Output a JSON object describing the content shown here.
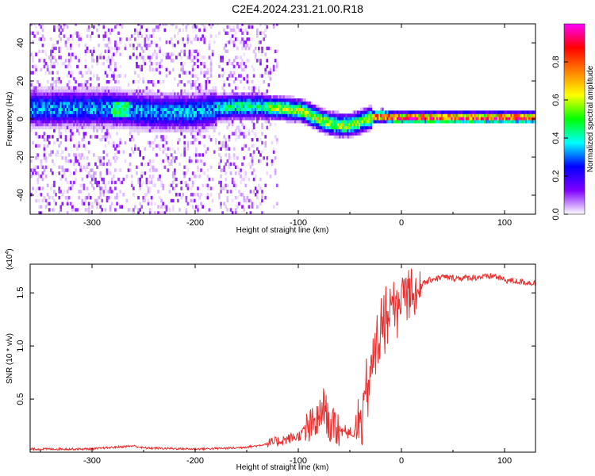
{
  "title": "C2E4.2024.231.21.00.R18",
  "chart_data": [
    {
      "type": "heatmap",
      "title": "C2E4.2024.231.21.00.R18",
      "xlabel": "Height of straight line (km)",
      "ylabel": "Frequency (Hz)",
      "xlim": [
        -360,
        130
      ],
      "ylim": [
        -50,
        50
      ],
      "x_ticks": [
        -300,
        -200,
        -100,
        0,
        100
      ],
      "y_ticks": [
        -40,
        -20,
        0,
        20,
        40
      ],
      "colorbar": {
        "label": "Normalized spectral amplitude",
        "range": [
          0,
          1
        ],
        "ticks": [
          0.0,
          0.2,
          0.4,
          0.6,
          0.8
        ],
        "tick_labels": [
          "0.0",
          "0.2",
          "0.4",
          "0.6",
          "0.8"
        ],
        "colormap": [
          "#ffffff",
          "#8000ff",
          "#0000ff",
          "#00ffff",
          "#00ff00",
          "#ffff00",
          "#ff8000",
          "#ff0000",
          "#ff00ff"
        ]
      },
      "ridge": {
        "x": [
          -280,
          -260,
          -240,
          -220,
          -200,
          -180,
          -160,
          -140,
          -120,
          -100,
          -90,
          -80,
          -70,
          -60,
          -50,
          -40,
          -30,
          -20,
          -10,
          0,
          50,
          100,
          130
        ],
        "y": [
          5,
          4,
          3,
          3,
          3,
          5,
          6,
          6,
          5,
          4,
          2,
          -1,
          -3,
          -4,
          -4,
          -2,
          0,
          1,
          0,
          0,
          0,
          0,
          0
        ]
      }
    },
    {
      "type": "line",
      "xlabel": "Height of straight line (km)",
      "ylabel": "SNR (10 * v/v)",
      "y_multiplier": "(x10",
      "y_multiplier_exp": "4",
      "y_multiplier_close": ")",
      "xlim": [
        -360,
        130
      ],
      "ylim": [
        0,
        1.77
      ],
      "x_ticks": [
        -300,
        -200,
        -100,
        0,
        100
      ],
      "y_ticks": [
        0.5,
        1.0,
        1.5
      ],
      "y_tick_labels": [
        "0.5",
        "1.0",
        "1.5"
      ],
      "color": "#e83030",
      "series": [
        {
          "x": [
            -360,
            -300,
            -260,
            -250,
            -200,
            -160,
            -140,
            -120,
            -100,
            -90,
            -80,
            -75,
            -70,
            -60,
            -50,
            -45,
            -40,
            -35,
            -30,
            -25,
            -20,
            -15,
            -10,
            -5,
            0,
            10,
            20,
            30,
            40,
            50,
            60,
            80,
            90,
            100,
            110,
            130
          ],
          "y": [
            0.03,
            0.03,
            0.06,
            0.04,
            0.03,
            0.04,
            0.06,
            0.1,
            0.15,
            0.22,
            0.3,
            0.45,
            0.25,
            0.22,
            0.18,
            0.15,
            0.3,
            0.5,
            0.75,
            0.95,
            1.15,
            1.25,
            1.35,
            1.4,
            1.45,
            1.52,
            1.58,
            1.63,
            1.65,
            1.64,
            1.64,
            1.65,
            1.66,
            1.62,
            1.61,
            1.59
          ]
        }
      ]
    }
  ]
}
